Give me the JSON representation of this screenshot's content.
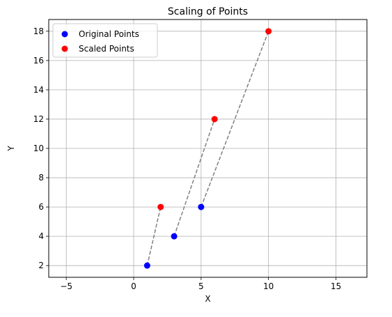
{
  "chart_data": {
    "type": "scatter",
    "title": "Scaling of Points",
    "xlabel": "X",
    "ylabel": "Y",
    "xlim": [
      -6.3,
      17.3
    ],
    "ylim": [
      1.2,
      18.8
    ],
    "xticks": [
      -5,
      0,
      5,
      10,
      15
    ],
    "yticks": [
      2,
      4,
      6,
      8,
      10,
      12,
      14,
      16,
      18
    ],
    "grid": true,
    "legend_position": "top-left",
    "series": [
      {
        "name": "Original Points",
        "color": "#0000ff",
        "points": [
          {
            "x": 1,
            "y": 2
          },
          {
            "x": 3,
            "y": 4
          },
          {
            "x": 5,
            "y": 6
          }
        ]
      },
      {
        "name": "Scaled Points",
        "color": "#ff0000",
        "points": [
          {
            "x": 2,
            "y": 6
          },
          {
            "x": 6,
            "y": 12
          },
          {
            "x": 10,
            "y": 18
          }
        ]
      }
    ],
    "connectors": {
      "style": "dashed",
      "color": "#808080",
      "pairs": [
        {
          "from": {
            "x": 1,
            "y": 2
          },
          "to": {
            "x": 2,
            "y": 6
          }
        },
        {
          "from": {
            "x": 3,
            "y": 4
          },
          "to": {
            "x": 6,
            "y": 12
          }
        },
        {
          "from": {
            "x": 5,
            "y": 6
          },
          "to": {
            "x": 10,
            "y": 18
          }
        }
      ]
    },
    "colors": {
      "grid": "#b0b0b0",
      "axes": "#000000"
    }
  }
}
